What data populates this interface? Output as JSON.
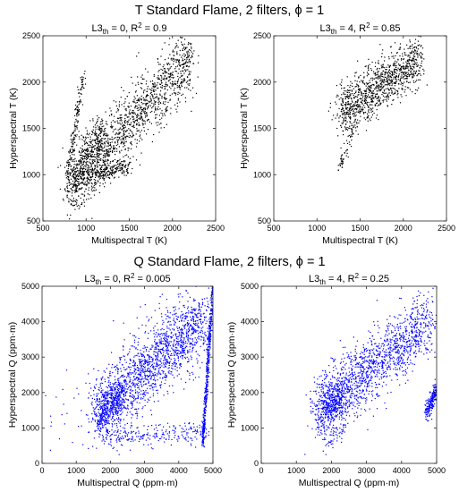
{
  "suptitles": {
    "top": "T Standard Flame, 2 filters, ϕ = 1",
    "bottom": "Q Standard Flame, 2 filters, ϕ = 1"
  },
  "colors": {
    "top_points": "#000000",
    "bottom_points": "#0000ff"
  },
  "chart_data": [
    {
      "type": "scatter",
      "title_main": "L3",
      "title_sub": "th",
      "title_rest": " = 0, R",
      "title_sup": "2",
      "title_end": " = 0.9",
      "xlabel": "Multispectral T (K)",
      "ylabel": "Hyperspectral T (K)",
      "xlim": [
        500,
        2500
      ],
      "ylim": [
        500,
        2500
      ],
      "xticks": [
        500,
        1000,
        1500,
        2000,
        2500
      ],
      "yticks": [
        500,
        1000,
        1500,
        2000,
        2500
      ],
      "grid": false,
      "color": "#000000",
      "clusters": [
        {
          "n": 1100,
          "x": [
            1100,
            2200
          ],
          "y": [
            1150,
            2250
          ],
          "spread": 170
        },
        {
          "n": 600,
          "x": [
            800,
            1200
          ],
          "y": [
            850,
            1450
          ],
          "spread": 140
        },
        {
          "n": 260,
          "x": [
            950,
            1500
          ],
          "y": [
            960,
            1100
          ],
          "spread": 50
        },
        {
          "n": 160,
          "x": [
            780,
            980
          ],
          "y": [
            1000,
            2100
          ],
          "spread": 40
        },
        {
          "n": 40,
          "x": [
            850,
            1150
          ],
          "y": [
            700,
            900
          ],
          "spread": 60
        }
      ]
    },
    {
      "type": "scatter",
      "title_main": "L3",
      "title_sub": "th",
      "title_rest": " = 4, R",
      "title_sup": "2",
      "title_end": " = 0.85",
      "xlabel": "Multispectral T (K)",
      "ylabel": "Hyperspectral T (K)",
      "xlim": [
        500,
        2500
      ],
      "ylim": [
        500,
        2500
      ],
      "xticks": [
        500,
        1000,
        1500,
        2000,
        2500
      ],
      "yticks": [
        500,
        1000,
        1500,
        2000,
        2500
      ],
      "grid": false,
      "color": "#000000",
      "clusters": [
        {
          "n": 1100,
          "x": [
            1250,
            2200
          ],
          "y": [
            1650,
            2270
          ],
          "spread": 130
        },
        {
          "n": 60,
          "x": [
            1250,
            1450
          ],
          "y": [
            1050,
            1550
          ],
          "spread": 40
        }
      ]
    },
    {
      "type": "scatter",
      "title_main": "L3",
      "title_sub": "th",
      "title_rest": " = 0, R",
      "title_sup": "2",
      "title_end": " = 0.005",
      "xlabel": "Multispectral Q (ppm·m)",
      "ylabel": "Hyperspectral Q (ppm·m)",
      "xlim": [
        0,
        5000
      ],
      "ylim": [
        0,
        5000
      ],
      "xticks": [
        0,
        1000,
        2000,
        3000,
        4000,
        5000
      ],
      "yticks": [
        0,
        1000,
        2000,
        3000,
        4000,
        5000
      ],
      "grid": false,
      "color": "#0000ff",
      "clusters": [
        {
          "n": 1700,
          "x": [
            1600,
            4800
          ],
          "y": [
            1400,
            4100
          ],
          "spread": 500
        },
        {
          "n": 500,
          "x": [
            4700,
            5000
          ],
          "y": [
            500,
            5000
          ],
          "spread": 60
        },
        {
          "n": 300,
          "x": [
            1600,
            2400
          ],
          "y": [
            1300,
            2000
          ],
          "spread": 250
        },
        {
          "n": 250,
          "x": [
            1800,
            4800
          ],
          "y": [
            700,
            900
          ],
          "spread": 150
        },
        {
          "n": 80,
          "x": [
            300,
            4000
          ],
          "y": [
            500,
            4800
          ],
          "spread": 600
        }
      ]
    },
    {
      "type": "scatter",
      "title_main": "L3",
      "title_sub": "th",
      "title_rest": " = 4, R",
      "title_sup": "2",
      "title_end": " = 0.25",
      "xlabel": "Multispectral Q (ppm·m)",
      "ylabel": "Hyperspectral Q (ppm·m)",
      "xlim": [
        0,
        5000
      ],
      "ylim": [
        0,
        5000
      ],
      "xticks": [
        0,
        1000,
        2000,
        3000,
        4000,
        5000
      ],
      "yticks": [
        0,
        1000,
        2000,
        3000,
        4000,
        5000
      ],
      "grid": false,
      "color": "#0000ff",
      "clusters": [
        {
          "n": 1500,
          "x": [
            1600,
            4800
          ],
          "y": [
            1500,
            4000
          ],
          "spread": 450
        },
        {
          "n": 260,
          "x": [
            1700,
            2400
          ],
          "y": [
            1300,
            2000
          ],
          "spread": 250
        },
        {
          "n": 220,
          "x": [
            4700,
            5000
          ],
          "y": [
            1400,
            2100
          ],
          "spread": 120
        },
        {
          "n": 60,
          "x": [
            1800,
            2400
          ],
          "y": [
            600,
            1100
          ],
          "spread": 150
        }
      ]
    }
  ]
}
